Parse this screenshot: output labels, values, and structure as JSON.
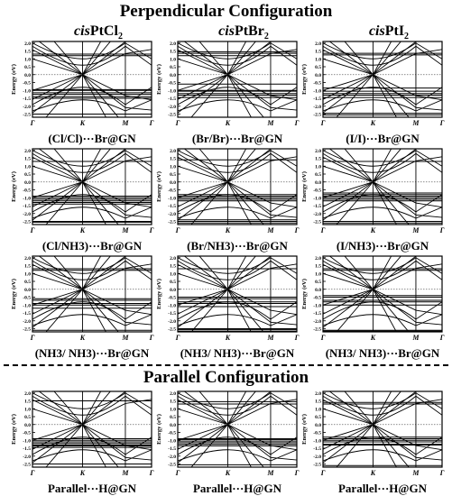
{
  "headings": {
    "perpendicular": "Perpendicular Configuration",
    "parallel": "Parallel Configuration"
  },
  "columns": [
    {
      "prefix": "cis",
      "formula": "PtCl",
      "subscript": "2"
    },
    {
      "prefix": "cis",
      "formula": "PtBr",
      "subscript": "2"
    },
    {
      "prefix": "cis",
      "formula": "PtI",
      "subscript": "2"
    }
  ],
  "chart_data": {
    "type": "line",
    "ylabel": "Energy (eV)",
    "ylim": [
      -2.7,
      2.1
    ],
    "yticks": [
      2.0,
      1.5,
      1.0,
      0.5,
      0.0,
      -0.5,
      -1.0,
      -1.5,
      -2.0,
      -2.5
    ],
    "ytick_labels": [
      "2.0",
      "1.5",
      "1.0",
      "0.5",
      "0.0",
      "-0.5",
      "-1.0",
      "-1.5",
      "-2.0",
      "-2.5"
    ],
    "k_path": [
      "Γ",
      "K",
      "M",
      "Γ"
    ],
    "fermi_level": 0.0,
    "panels": [
      {
        "caption": "(Cl/Cl)···Br@GN",
        "flat_bands": [
          1.3,
          1.2,
          -0.95,
          -1.0,
          -1.15,
          -1.25,
          -1.4,
          -1.5,
          -2.5
        ]
      },
      {
        "caption": "(Br/Br)···Br@GN",
        "flat_bands": [
          1.45,
          1.35,
          1.2,
          -0.6,
          -1.0,
          -1.05,
          -1.2,
          -1.3,
          -1.45
        ]
      },
      {
        "caption": "(I/I)···Br@GN",
        "flat_bands": [
          1.35,
          1.25,
          -0.85,
          -1.05,
          -1.2,
          -1.3,
          -1.45,
          -2.45,
          -2.55
        ]
      },
      {
        "caption": "(Cl/NH3)···Br@GN",
        "flat_bands": [
          1.3,
          -0.9,
          -1.0,
          -1.1,
          -1.2,
          -1.3,
          -1.4,
          -2.5,
          -2.55
        ]
      },
      {
        "caption": "(Br/NH3)···Br@GN",
        "flat_bands": [
          1.4,
          -0.8,
          -0.9,
          -1.0,
          -1.1,
          -1.2,
          -2.4,
          -2.5,
          -2.6
        ]
      },
      {
        "caption": "(I/NH3)···Br@GN",
        "flat_bands": [
          1.3,
          -0.7,
          -0.8,
          -0.9,
          -1.0,
          -1.1,
          -1.2,
          -2.5,
          -2.6
        ]
      },
      {
        "caption": "(NH3/ NH3)···Br@GN",
        "flat_bands": [
          1.3,
          1.2,
          -0.6,
          -0.7,
          -0.9,
          -1.0,
          -1.2,
          -2.6,
          -2.7
        ]
      },
      {
        "caption": "(NH3/ NH3)···Br@GN",
        "flat_bands": [
          1.3,
          -0.5,
          -0.6,
          -0.8,
          -0.9,
          -1.1,
          -2.5,
          -2.55,
          -2.65
        ]
      },
      {
        "caption": "(NH3/ NH3)···Br@GN",
        "flat_bands": [
          1.3,
          1.2,
          -0.4,
          -0.5,
          -0.7,
          -0.8,
          -1.0,
          -2.6,
          -2.65
        ]
      },
      {
        "caption": "Parallel···H@GN",
        "flat_bands": [
          1.5,
          -0.9,
          -1.0,
          -1.1,
          -1.2,
          -1.3,
          -1.35,
          -1.45,
          -2.5
        ]
      },
      {
        "caption": "Parallel···H@GN",
        "flat_bands": [
          1.45,
          1.3,
          -0.9,
          -0.95,
          -1.05,
          -1.15,
          -1.25,
          -1.35,
          -2.55
        ]
      },
      {
        "caption": "Parallel···H@GN",
        "flat_bands": [
          1.4,
          1.3,
          -0.8,
          -0.9,
          -1.0,
          -1.1,
          -1.25,
          -1.3,
          -2.6
        ]
      }
    ]
  }
}
